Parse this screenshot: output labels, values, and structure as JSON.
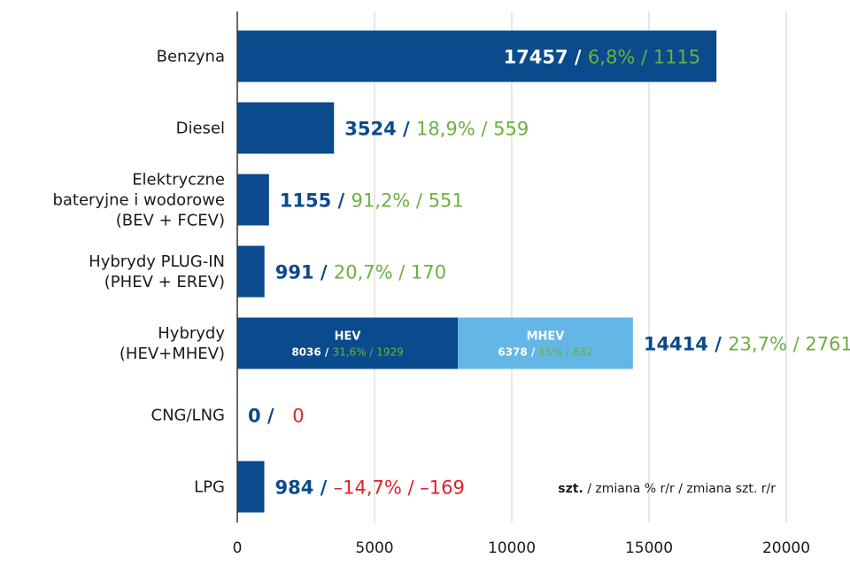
{
  "colors": {
    "navy": "#0b4a8c",
    "light_blue": "#63b6e6",
    "green": "#6ab13f",
    "red": "#e0202a",
    "axis": "#333333",
    "grid": "#cfcfcf",
    "text": "#1a1a1a"
  },
  "chart_data": {
    "type": "bar",
    "orientation": "horizontal",
    "xlim": [
      0,
      20000
    ],
    "ticks": [
      0,
      5000,
      10000,
      15000,
      20000
    ],
    "tick_labels": [
      "0",
      "5000",
      "10000",
      "15000",
      "20000"
    ],
    "grid": "vertical",
    "legend": {
      "bold": "szt.",
      "rest": " / zmiana % r/r / zmiana szt. r/r"
    },
    "series": [
      {
        "category_lines": [
          "Benzyna"
        ],
        "value": 17457,
        "units_label": "17457",
        "pct": "6,8%",
        "delta": "1115",
        "negative": false,
        "label_inside": true
      },
      {
        "category_lines": [
          "Diesel"
        ],
        "value": 3524,
        "units_label": "3524",
        "pct": "18,9%",
        "delta": "559",
        "negative": false
      },
      {
        "category_lines": [
          "Elektryczne",
          "bateryjne i wodorowe",
          "(BEV + FCEV)"
        ],
        "value": 1155,
        "units_label": "1155",
        "pct": "91,2%",
        "delta": "551",
        "negative": false
      },
      {
        "category_lines": [
          "Hybrydy PLUG-IN",
          "(PHEV + EREV)"
        ],
        "value": 991,
        "units_label": "991",
        "pct": "20,7%",
        "delta": "170",
        "negative": false
      },
      {
        "category_lines": [
          "Hybrydy",
          "(HEV+MHEV)"
        ],
        "value": 14414,
        "units_label": "14414",
        "pct": "23,7%",
        "delta": "2761",
        "negative": false,
        "segments": [
          {
            "name": "HEV",
            "value": 8036,
            "units_label": "8036",
            "pct": "31,6%",
            "delta": "1929",
            "color": "#0b4a8c"
          },
          {
            "name": "MHEV",
            "value": 6378,
            "units_label": "6378",
            "pct": "15%",
            "delta": "832",
            "color": "#63b6e6"
          }
        ]
      },
      {
        "category_lines": [
          "CNG/LNG"
        ],
        "value": 0,
        "units_label": "0",
        "pct": "",
        "delta": "0",
        "negative": true
      },
      {
        "category_lines": [
          "LPG"
        ],
        "value": 984,
        "units_label": "984",
        "pct": "–14,7%",
        "delta": "–169",
        "negative": true
      }
    ]
  }
}
